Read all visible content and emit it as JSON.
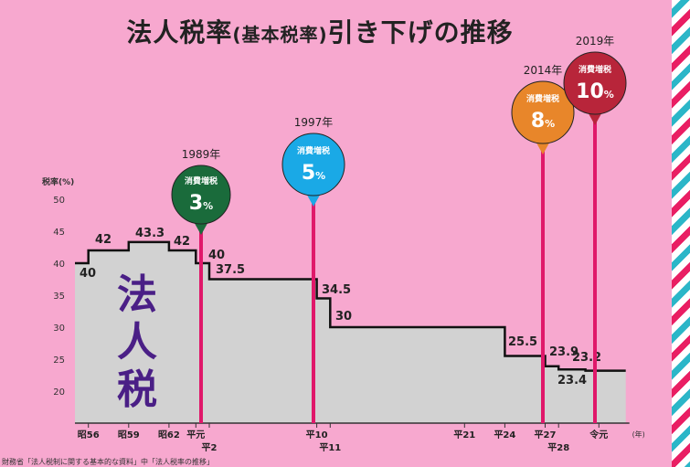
{
  "title": {
    "main": "法人税率",
    "paren": "(基本税率)",
    "rest": "引き下げの推移"
  },
  "source": "財務省「法人税制に関する基本的な資料」中「法人税率の推移」",
  "chart_data": {
    "type": "area",
    "title": "法人税率(基本税率)引き下げの推移",
    "ylabel": "税率(%)",
    "xlabel": "(年)",
    "ylim": [
      15,
      50
    ],
    "yticks": [
      20,
      25,
      30,
      35,
      40,
      45,
      50
    ],
    "area_label": "法人税",
    "grid": false,
    "x_ticks": [
      {
        "label": "昭56",
        "row": 0,
        "year": 1981
      },
      {
        "label": "昭59",
        "row": 0,
        "year": 1984
      },
      {
        "label": "昭62",
        "row": 0,
        "year": 1987
      },
      {
        "label": "平元",
        "row": 0,
        "year": 1989
      },
      {
        "label": "平2",
        "row": 1,
        "year": 1990
      },
      {
        "label": "平10",
        "row": 0,
        "year": 1998
      },
      {
        "label": "平11",
        "row": 1,
        "year": 1999
      },
      {
        "label": "平21",
        "row": 0,
        "year": 2009
      },
      {
        "label": "平24",
        "row": 0,
        "year": 2012
      },
      {
        "label": "平27",
        "row": 0,
        "year": 2015
      },
      {
        "label": "平28",
        "row": 1,
        "year": 2016
      },
      {
        "label": "令元",
        "row": 0,
        "year": 2019
      }
    ],
    "steps": [
      {
        "from": 1980,
        "to": 1981,
        "value": 40,
        "label": "40"
      },
      {
        "from": 1981,
        "to": 1984,
        "value": 42,
        "label": "42"
      },
      {
        "from": 1984,
        "to": 1987,
        "value": 43.3,
        "label": "43.3"
      },
      {
        "from": 1987,
        "to": 1989,
        "value": 42,
        "label": "42"
      },
      {
        "from": 1989,
        "to": 1990,
        "value": 40,
        "label": "40"
      },
      {
        "from": 1990,
        "to": 1998,
        "value": 37.5,
        "label": "37.5"
      },
      {
        "from": 1998,
        "to": 1999,
        "value": 34.5,
        "label": "34.5"
      },
      {
        "from": 1999,
        "to": 2012,
        "value": 30,
        "label": "30"
      },
      {
        "from": 2012,
        "to": 2015,
        "value": 25.5,
        "label": "25.5"
      },
      {
        "from": 2015,
        "to": 2016,
        "value": 23.9,
        "label": "23.9"
      },
      {
        "from": 2016,
        "to": 2018,
        "value": 23.4,
        "label": "23.4"
      },
      {
        "from": 2018,
        "to": 2021,
        "value": 23.2,
        "label": "23.2"
      }
    ],
    "annotations": [
      {
        "year_label": "1989年",
        "tax_label": "消費増税",
        "rate": "3",
        "unit": "%",
        "x": 1989,
        "color": "#1a6b3b"
      },
      {
        "year_label": "1997年",
        "tax_label": "消費増税",
        "rate": "5",
        "unit": "%",
        "x": 1997.5,
        "color": "#1aa9e6"
      },
      {
        "year_label": "2014年",
        "tax_label": "消費増税",
        "rate": "8",
        "unit": "%",
        "x": 2014.5,
        "color": "#e8862a"
      },
      {
        "year_label": "2019年",
        "tax_label": "消費増税",
        "rate": "10",
        "unit": "%",
        "x": 2019.2,
        "color": "#b8253a"
      }
    ]
  }
}
